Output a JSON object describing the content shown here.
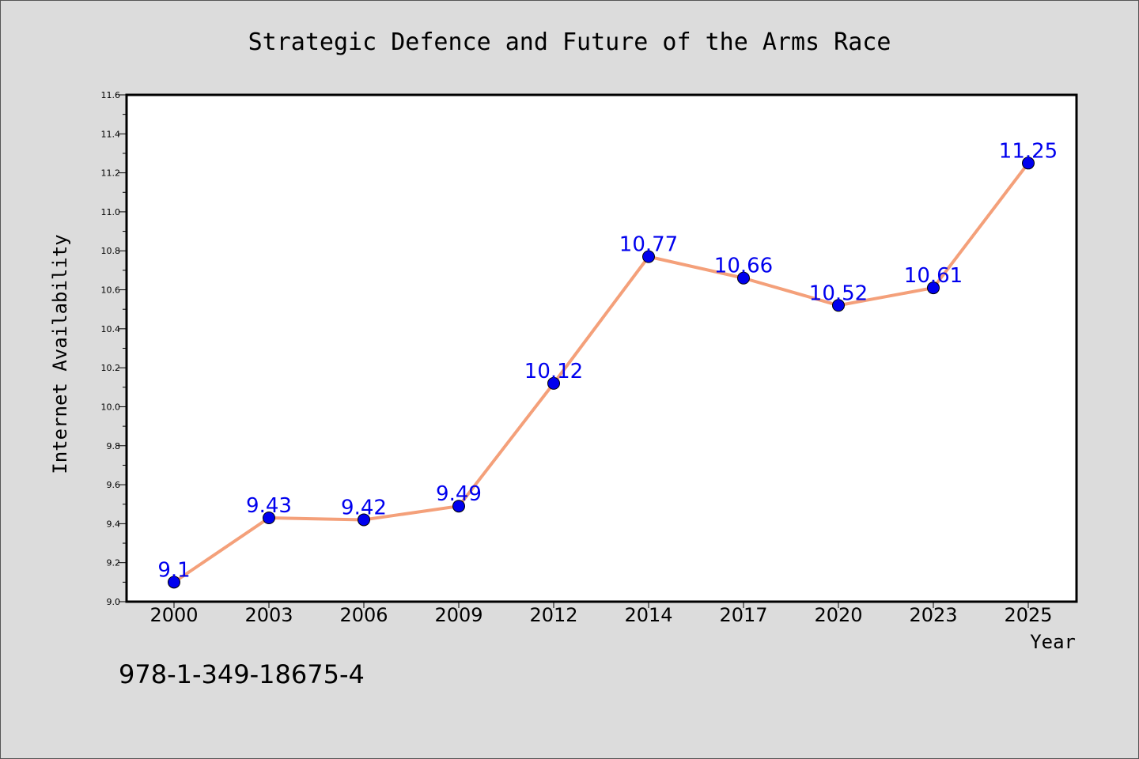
{
  "chart_data": {
    "type": "line",
    "title": "Strategic Defence and Future of the Arms Race",
    "xlabel": "Year",
    "ylabel": "Internet Availability",
    "categories": [
      "2000",
      "2003",
      "2006",
      "2009",
      "2012",
      "2014",
      "2017",
      "2020",
      "2023",
      "2025"
    ],
    "series": [
      {
        "values": [
          9.1,
          9.43,
          9.42,
          9.49,
          10.12,
          10.77,
          10.66,
          10.52,
          10.61,
          11.25
        ],
        "labels": [
          "9.1",
          "9.43",
          "9.42",
          "9.49",
          "10.12",
          "10.77",
          "10.66",
          "10.52",
          "10.61",
          "11.25"
        ],
        "line_color": "#f4a07a",
        "marker_color": "#0000ee",
        "label_color": "#0000ee"
      }
    ],
    "ylim": [
      9.0,
      11.6
    ],
    "yticks": [
      "9.0",
      "9.2",
      "9.4",
      "9.6",
      "9.8",
      "10.0",
      "10.2",
      "10.4",
      "10.6",
      "10.8",
      "11.0",
      "11.2",
      "11.4",
      "11.6"
    ],
    "grid": false,
    "legend": "none"
  },
  "footer": {
    "isbn": "978-1-349-18675-4"
  },
  "colors": {
    "background": "#dcdcdc",
    "plot_background": "#ffffff"
  }
}
